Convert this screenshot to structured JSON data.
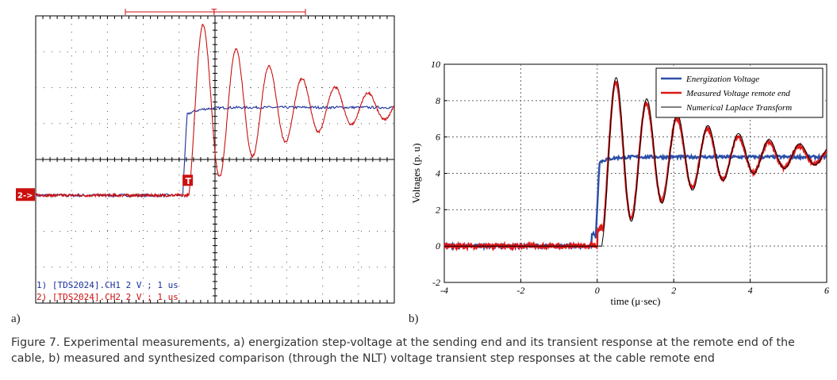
{
  "panel_a_label": "a)",
  "panel_b_label": "b)",
  "caption": "Figure 7.  Experimental measurements, a) energization step-voltage at the sending end and its transient response at the remote end of the cable, b) measured and synthesized comparison (through the NLT) voltage transient step responses at the cable remote end",
  "colors": {
    "blue": "#2b4fa8",
    "red": "#e01818",
    "black": "#000000",
    "scope_blue": "#1a2f9a",
    "scope_red": "#cc1010"
  },
  "chart_data": [
    {
      "type": "line",
      "title": "",
      "trigger_label": "T",
      "trigger_marker": "T",
      "channel_marker": "2->",
      "xlim": [
        0,
        10
      ],
      "ylim": [
        -4,
        4
      ],
      "grid": "oscilloscope 10x8 divisions",
      "readout": [
        {
          "channel": "CH1",
          "text": "1) [TDS2024].CH1  2  V ;  1 us"
        },
        {
          "channel": "CH2",
          "text": "2) [TDS2024].CH2  2  V ;  1 us"
        }
      ],
      "series": [
        {
          "name": "CH1 energization (sending end)",
          "color": "scope_blue",
          "baseline": -1.0,
          "step_time": 4.1,
          "final": 1.45
        },
        {
          "name": "CH2 remote end",
          "color": "scope_red",
          "baseline": -1.0,
          "step_time": 4.25,
          "peak": 3.5,
          "final": 1.45,
          "oscillation_period": 0.92
        }
      ]
    },
    {
      "type": "line",
      "xlabel": "time (μ·sec)",
      "ylabel": "Voltages (p. u)",
      "xlim": [
        -4,
        6
      ],
      "ylim": [
        -2,
        10
      ],
      "xticks": [
        -4,
        -2,
        0,
        2,
        4,
        6
      ],
      "yticks": [
        -2,
        0,
        2,
        4,
        6,
        8,
        10
      ],
      "grid": "dotted",
      "legend_position": "top-right",
      "series": [
        {
          "name": "Energization Voltage",
          "color": "blue",
          "baseline": 0,
          "step_time": 0.0,
          "final": 4.9
        },
        {
          "name": "Measured Voltage remote end",
          "color": "red",
          "baseline": 0,
          "peak": 9.2,
          "troughs": [
            1.8,
            3.1,
            3.9,
            4.4
          ],
          "peaks": [
            9.2,
            7.5,
            6.5,
            5.8,
            5.4,
            5.2
          ],
          "final": 4.95,
          "oscillation_period": 0.8
        },
        {
          "name": "Numerical Laplace Transform",
          "color": "black",
          "baseline": 0,
          "peak": 9.3,
          "final": 5.0,
          "oscillation_period": 0.8
        }
      ]
    }
  ]
}
